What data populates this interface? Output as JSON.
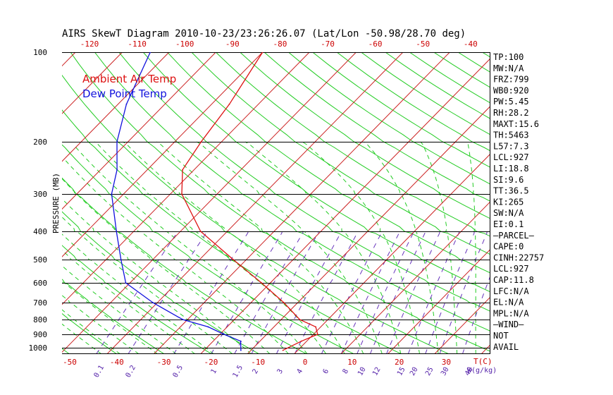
{
  "chart_data": {
    "type": "line",
    "title": "AIRS SkewT Diagram 2010-10-23/23:26:26.07 (Lat/Lon -50.98/28.70 deg)",
    "ylabel": "PRESSURE (MB)",
    "x_unit_label": "T(C)",
    "mixing_unit_label": "W(g/kg)",
    "y_scale": "log",
    "ylim": [
      1050,
      100
    ],
    "pressure_ticks": [
      100,
      200,
      300,
      400,
      500,
      600,
      700,
      800,
      900,
      1000
    ],
    "temp_ticks_top": [
      -120,
      -110,
      -100,
      -90,
      -80,
      -70,
      -60,
      -50,
      -40
    ],
    "temp_ticks_bottom": [
      -50,
      -40,
      -30,
      -20,
      -10,
      0,
      10,
      20,
      30
    ],
    "mixing_ratio_labels": [
      "0.1",
      "0.2",
      "0.5",
      "1",
      "1.5",
      "2",
      "3",
      "4",
      "6",
      "8",
      "10",
      "12",
      "15",
      "20",
      "25",
      "30",
      "40"
    ],
    "legend": [
      {
        "label": "Ambient Air Temp",
        "color": "#dd1111"
      },
      {
        "label": "Dew Point Temp",
        "color": "#1111dd"
      }
    ],
    "series": [
      {
        "name": "Ambient Air Temp",
        "color": "#dd1111",
        "points": [
          {
            "p": 1020,
            "t": -2
          },
          {
            "p": 950,
            "t": 0
          },
          {
            "p": 900,
            "t": 2
          },
          {
            "p": 850,
            "t": 0
          },
          {
            "p": 800,
            "t": -5
          },
          {
            "p": 700,
            "t": -12
          },
          {
            "p": 600,
            "t": -21
          },
          {
            "p": 500,
            "t": -32
          },
          {
            "p": 400,
            "t": -45
          },
          {
            "p": 300,
            "t": -57
          },
          {
            "p": 250,
            "t": -62
          },
          {
            "p": 200,
            "t": -64
          },
          {
            "p": 150,
            "t": -66
          },
          {
            "p": 100,
            "t": -70
          }
        ]
      },
      {
        "name": "Dew Point Temp",
        "color": "#1111dd",
        "points": [
          {
            "p": 1020,
            "t": -11
          },
          {
            "p": 950,
            "t": -13
          },
          {
            "p": 900,
            "t": -18
          },
          {
            "p": 850,
            "t": -23
          },
          {
            "p": 800,
            "t": -30
          },
          {
            "p": 700,
            "t": -40
          },
          {
            "p": 600,
            "t": -50
          },
          {
            "p": 500,
            "t": -56
          },
          {
            "p": 400,
            "t": -63
          },
          {
            "p": 300,
            "t": -72
          },
          {
            "p": 250,
            "t": -76
          },
          {
            "p": 200,
            "t": -82
          },
          {
            "p": 150,
            "t": -88
          },
          {
            "p": 100,
            "t": -94
          }
        ]
      }
    ],
    "indices": [
      "TP:100",
      "MW:N/A",
      "FRZ:799",
      "WB0:920",
      "PW:5.45",
      "RH:28.2",
      "MAXT:15.6",
      "TH:5463",
      "L57:7.3",
      "LCL:927",
      "LI:18.8",
      "SI:9.6",
      "TT:36.5",
      "KI:265",
      "SW:N/A",
      "EI:0.1",
      "—PARCEL—",
      "CAPE:0",
      "CINH:22757",
      "LCL:927",
      "CAP:11.8",
      "LFC:N/A",
      "EL:N/A",
      "MPL:N/A",
      "—WIND—",
      "NOT",
      "AVAIL"
    ]
  }
}
